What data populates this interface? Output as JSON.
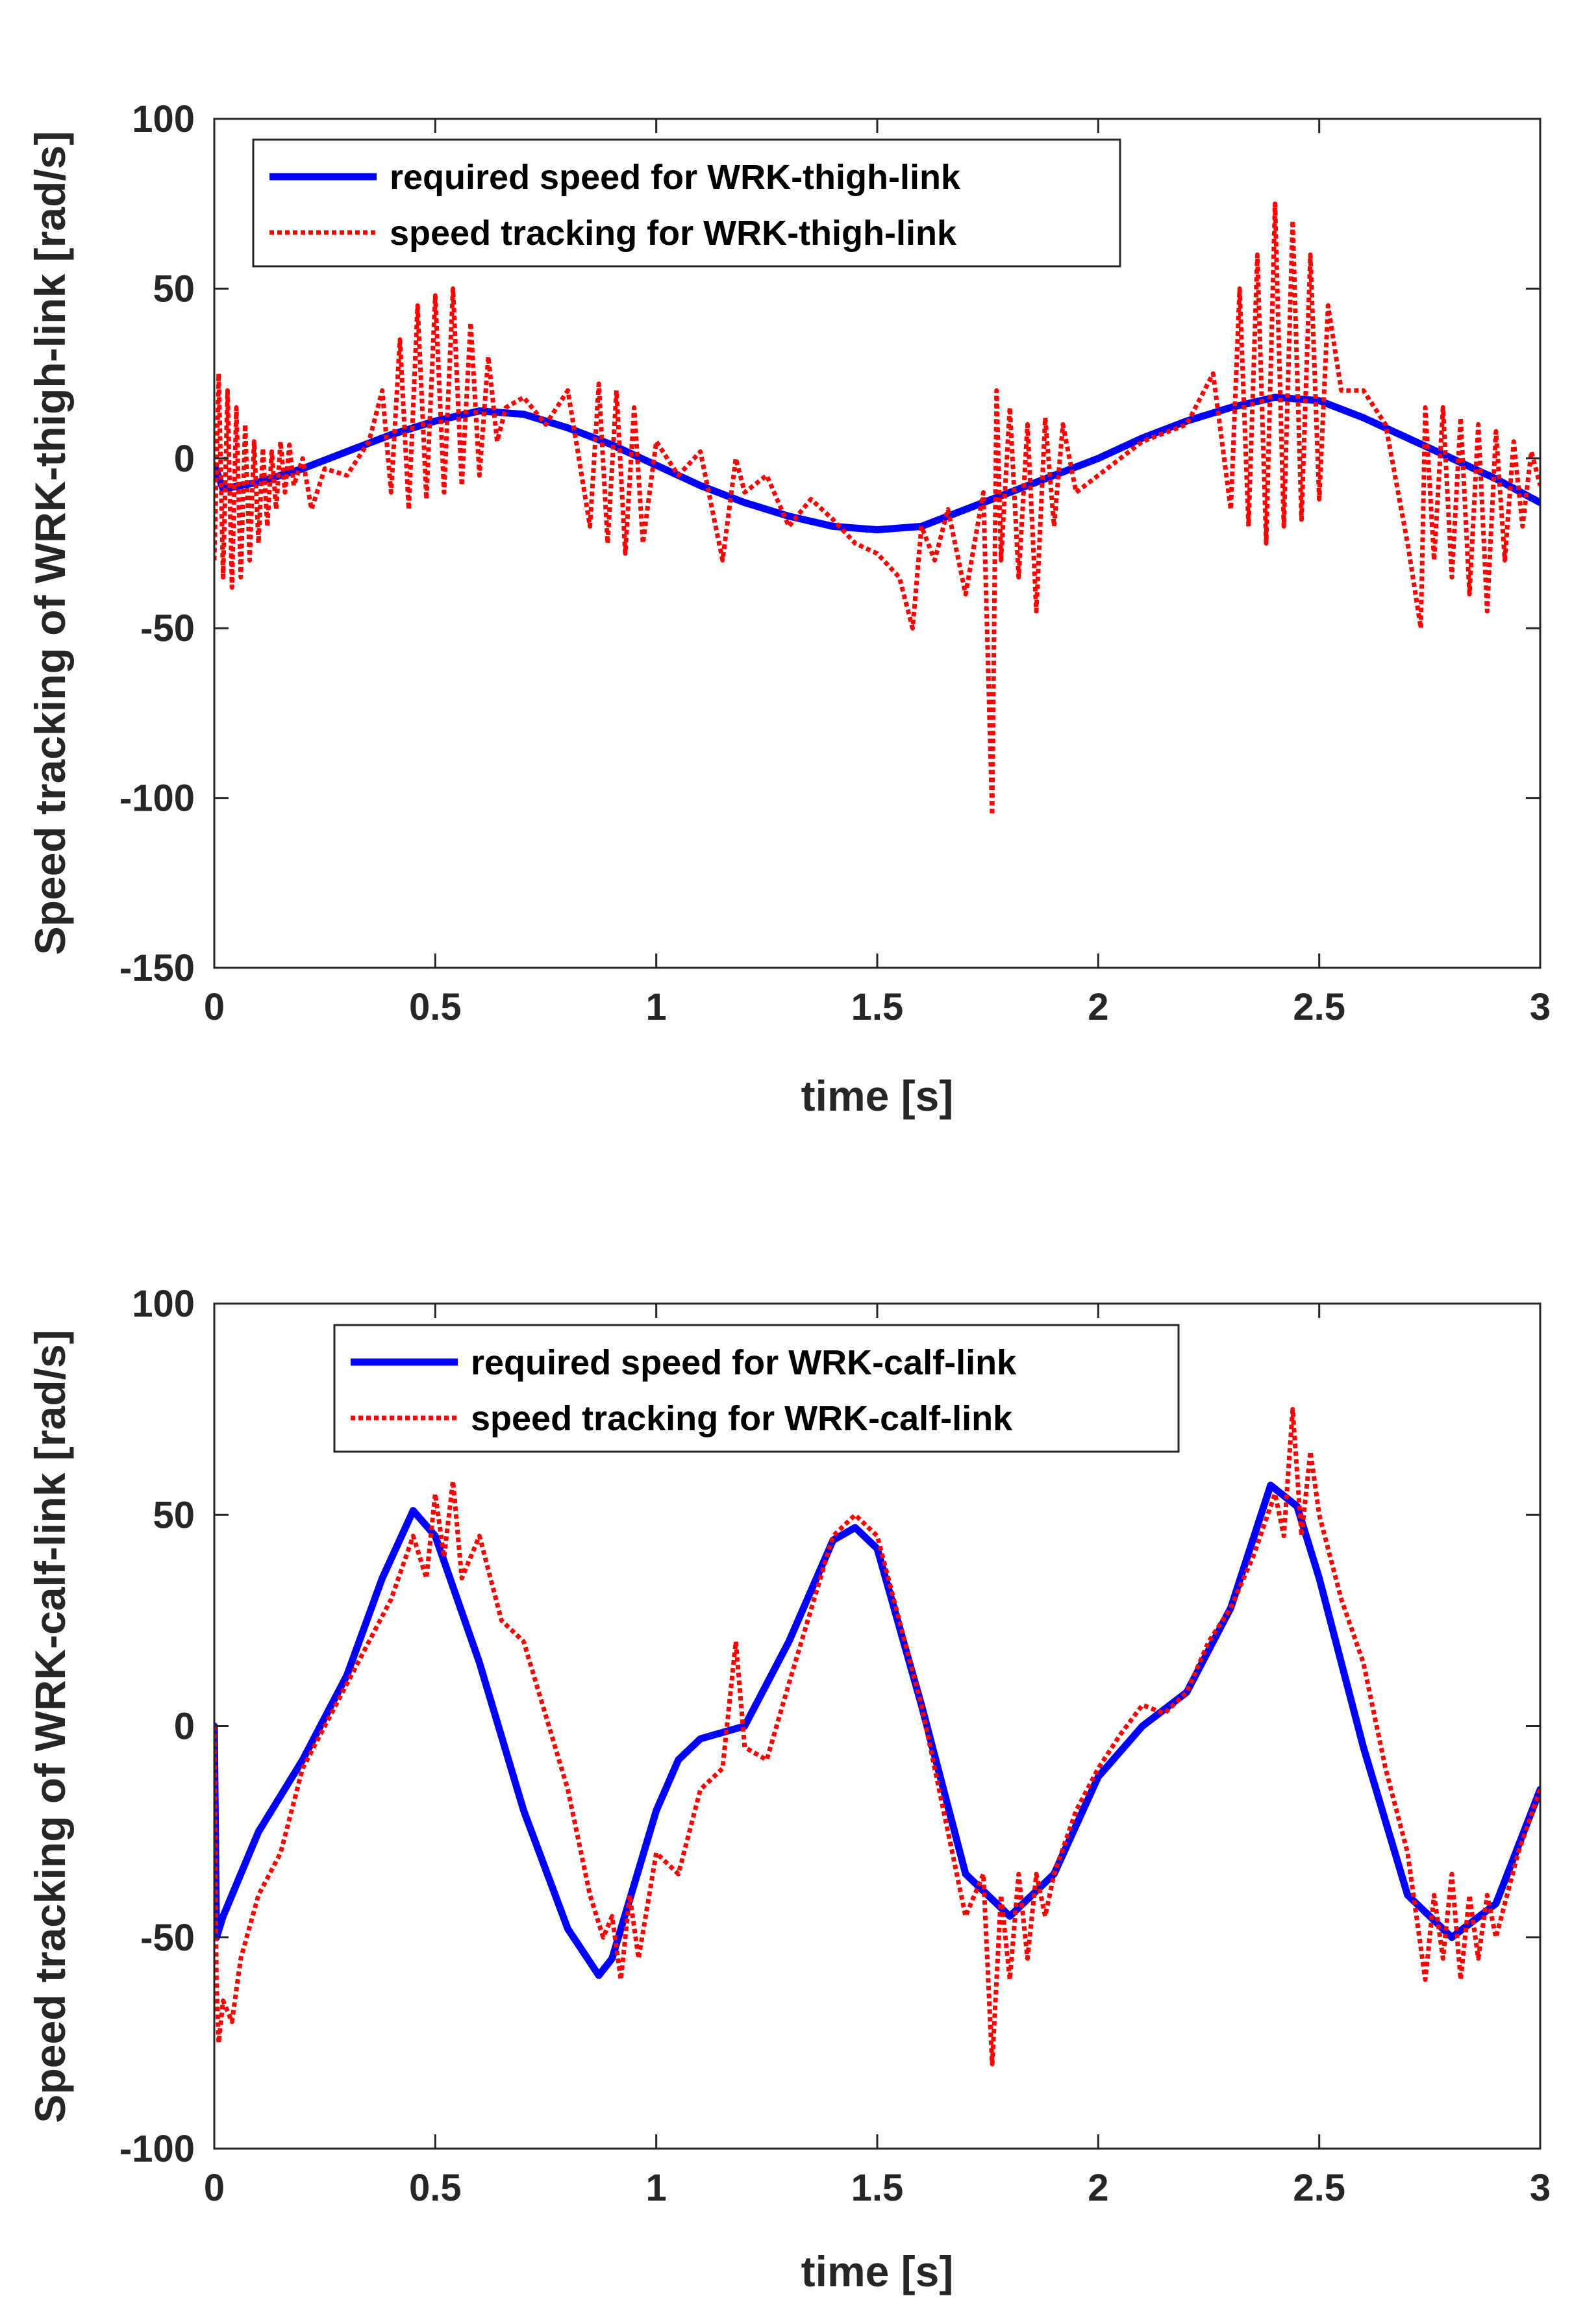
{
  "chart_data": [
    {
      "type": "line",
      "title": "",
      "xlabel": "time [s]",
      "ylabel": "Speed tracking of WRK-thigh-link [rad/s]",
      "xlim": [
        0,
        3
      ],
      "ylim": [
        -150,
        100
      ],
      "xticks": [
        0,
        0.5,
        1,
        1.5,
        2,
        2.5,
        3
      ],
      "xtick_labels": [
        "0",
        "0.5",
        "1",
        "1.5",
        "2",
        "2.5",
        "3"
      ],
      "yticks": [
        100,
        50,
        0,
        -50,
        -100,
        -150
      ],
      "ytick_labels": [
        "100",
        "50",
        "0",
        "-50",
        "-100",
        "-150"
      ],
      "legend_location": "top-left",
      "series": [
        {
          "name": "required speed for WRK-thigh-link",
          "color": "#0000ff",
          "style": "solid",
          "x": [
            0,
            0.02,
            0.1,
            0.2,
            0.3,
            0.4,
            0.5,
            0.6,
            0.7,
            0.8,
            0.9,
            1.0,
            1.1,
            1.2,
            1.3,
            1.4,
            1.5,
            1.6,
            1.7,
            1.8,
            1.9,
            2.0,
            2.1,
            2.2,
            2.3,
            2.4,
            2.5,
            2.6,
            2.7,
            2.8,
            2.9,
            3.0
          ],
          "y": [
            -2,
            -9,
            -7,
            -3,
            2,
            7,
            11,
            14,
            13,
            9,
            4,
            -2,
            -8,
            -13,
            -17,
            -20,
            -21,
            -20,
            -15,
            -10,
            -5,
            0,
            6,
            11,
            15,
            18,
            17,
            12,
            6,
            0,
            -6,
            -13
          ]
        },
        {
          "name": "speed tracking for WRK-thigh-link",
          "color": "#ff0000",
          "style": "dotted",
          "x": [
            0,
            0.01,
            0.02,
            0.03,
            0.04,
            0.05,
            0.06,
            0.07,
            0.08,
            0.09,
            0.1,
            0.11,
            0.12,
            0.13,
            0.14,
            0.15,
            0.16,
            0.17,
            0.18,
            0.2,
            0.22,
            0.25,
            0.3,
            0.35,
            0.38,
            0.4,
            0.42,
            0.44,
            0.46,
            0.48,
            0.5,
            0.52,
            0.54,
            0.56,
            0.58,
            0.6,
            0.62,
            0.64,
            0.66,
            0.7,
            0.75,
            0.8,
            0.85,
            0.87,
            0.89,
            0.91,
            0.93,
            0.95,
            0.97,
            1.0,
            1.05,
            1.1,
            1.15,
            1.18,
            1.2,
            1.25,
            1.3,
            1.35,
            1.4,
            1.45,
            1.5,
            1.55,
            1.58,
            1.6,
            1.63,
            1.66,
            1.7,
            1.74,
            1.76,
            1.77,
            1.78,
            1.8,
            1.82,
            1.84,
            1.86,
            1.88,
            1.9,
            1.92,
            1.95,
            2.0,
            2.1,
            2.2,
            2.26,
            2.3,
            2.32,
            2.34,
            2.36,
            2.38,
            2.4,
            2.42,
            2.44,
            2.46,
            2.48,
            2.5,
            2.52,
            2.55,
            2.6,
            2.65,
            2.7,
            2.73,
            2.74,
            2.76,
            2.78,
            2.8,
            2.82,
            2.84,
            2.86,
            2.88,
            2.9,
            2.92,
            2.94,
            2.96,
            2.98,
            3.0
          ],
          "y": [
            -30,
            25,
            -35,
            20,
            -38,
            15,
            -35,
            10,
            -30,
            5,
            -25,
            3,
            -20,
            2,
            -15,
            5,
            -10,
            4,
            -8,
            0,
            -15,
            -3,
            -5,
            5,
            20,
            -10,
            35,
            -15,
            45,
            -12,
            48,
            -10,
            50,
            -8,
            40,
            -5,
            30,
            5,
            15,
            18,
            10,
            20,
            -20,
            22,
            -25,
            20,
            -28,
            15,
            -25,
            5,
            -5,
            2,
            -30,
            0,
            -10,
            -5,
            -20,
            -12,
            -18,
            -25,
            -28,
            -35,
            -50,
            -20,
            -30,
            -15,
            -40,
            -10,
            -105,
            20,
            -30,
            15,
            -35,
            10,
            -45,
            12,
            -20,
            10,
            -10,
            -5,
            5,
            10,
            25,
            -15,
            50,
            -20,
            60,
            -25,
            75,
            -20,
            70,
            -18,
            60,
            -12,
            45,
            20,
            20,
            10,
            -25,
            -50,
            15,
            -30,
            15,
            -35,
            12,
            -40,
            10,
            -45,
            8,
            -30,
            5,
            -20,
            2,
            -8
          ]
        }
      ]
    },
    {
      "type": "line",
      "title": "",
      "xlabel": "time [s]",
      "ylabel": "Speed tracking of WRK-calf-link [rad/s]",
      "xlim": [
        0,
        3
      ],
      "ylim": [
        -100,
        100
      ],
      "xticks": [
        0,
        0.5,
        1,
        1.5,
        2,
        2.5,
        3
      ],
      "xtick_labels": [
        "0",
        "0.5",
        "1",
        "1.5",
        "2",
        "2.5",
        "3"
      ],
      "yticks": [
        100,
        50,
        0,
        -50,
        -100
      ],
      "ytick_labels": [
        "100",
        "50",
        "0",
        "-50",
        "-100"
      ],
      "legend_location": "top-center",
      "series": [
        {
          "name": "required speed for WRK-calf-link",
          "color": "#0000ff",
          "style": "solid",
          "x": [
            0,
            0.005,
            0.02,
            0.1,
            0.2,
            0.3,
            0.38,
            0.45,
            0.5,
            0.6,
            0.7,
            0.8,
            0.87,
            0.9,
            1.0,
            1.05,
            1.1,
            1.2,
            1.3,
            1.4,
            1.45,
            1.5,
            1.6,
            1.7,
            1.8,
            1.9,
            2.0,
            2.1,
            2.2,
            2.3,
            2.39,
            2.45,
            2.5,
            2.6,
            2.7,
            2.8,
            2.9,
            3.0
          ],
          "y": [
            0,
            -50,
            -45,
            -25,
            -8,
            12,
            35,
            51,
            45,
            15,
            -20,
            -48,
            -59,
            -55,
            -20,
            -8,
            -3,
            0,
            20,
            44,
            47,
            42,
            5,
            -35,
            -45,
            -35,
            -12,
            0,
            8,
            28,
            57,
            52,
            35,
            -5,
            -40,
            -50,
            -42,
            -15
          ]
        },
        {
          "name": "speed tracking for WRK-calf-link",
          "color": "#ff0000",
          "style": "dotted",
          "x": [
            0,
            0.005,
            0.01,
            0.02,
            0.04,
            0.06,
            0.1,
            0.15,
            0.2,
            0.3,
            0.4,
            0.45,
            0.48,
            0.5,
            0.52,
            0.54,
            0.56,
            0.6,
            0.65,
            0.7,
            0.8,
            0.85,
            0.88,
            0.9,
            0.92,
            0.94,
            0.96,
            1.0,
            1.05,
            1.1,
            1.15,
            1.18,
            1.2,
            1.25,
            1.3,
            1.4,
            1.45,
            1.5,
            1.55,
            1.6,
            1.65,
            1.7,
            1.74,
            1.76,
            1.78,
            1.8,
            1.82,
            1.84,
            1.86,
            1.88,
            1.9,
            1.95,
            2.0,
            2.05,
            2.1,
            2.15,
            2.2,
            2.25,
            2.3,
            2.35,
            2.4,
            2.42,
            2.44,
            2.46,
            2.48,
            2.5,
            2.55,
            2.6,
            2.65,
            2.7,
            2.74,
            2.76,
            2.78,
            2.8,
            2.82,
            2.84,
            2.86,
            2.88,
            2.9,
            2.95,
            3.0
          ],
          "y": [
            0,
            -60,
            -75,
            -65,
            -70,
            -55,
            -40,
            -30,
            -10,
            10,
            30,
            45,
            35,
            55,
            40,
            58,
            35,
            45,
            25,
            20,
            -15,
            -40,
            -50,
            -45,
            -60,
            -40,
            -55,
            -30,
            -35,
            -15,
            -10,
            20,
            -5,
            -8,
            10,
            45,
            50,
            45,
            25,
            5,
            -20,
            -45,
            -35,
            -80,
            -40,
            -60,
            -35,
            -55,
            -35,
            -45,
            -35,
            -20,
            -10,
            -2,
            5,
            3,
            8,
            20,
            28,
            40,
            55,
            45,
            75,
            45,
            65,
            50,
            30,
            15,
            -10,
            -30,
            -60,
            -40,
            -55,
            -35,
            -60,
            -40,
            -55,
            -40,
            -50,
            -30,
            -15
          ]
        }
      ]
    }
  ]
}
